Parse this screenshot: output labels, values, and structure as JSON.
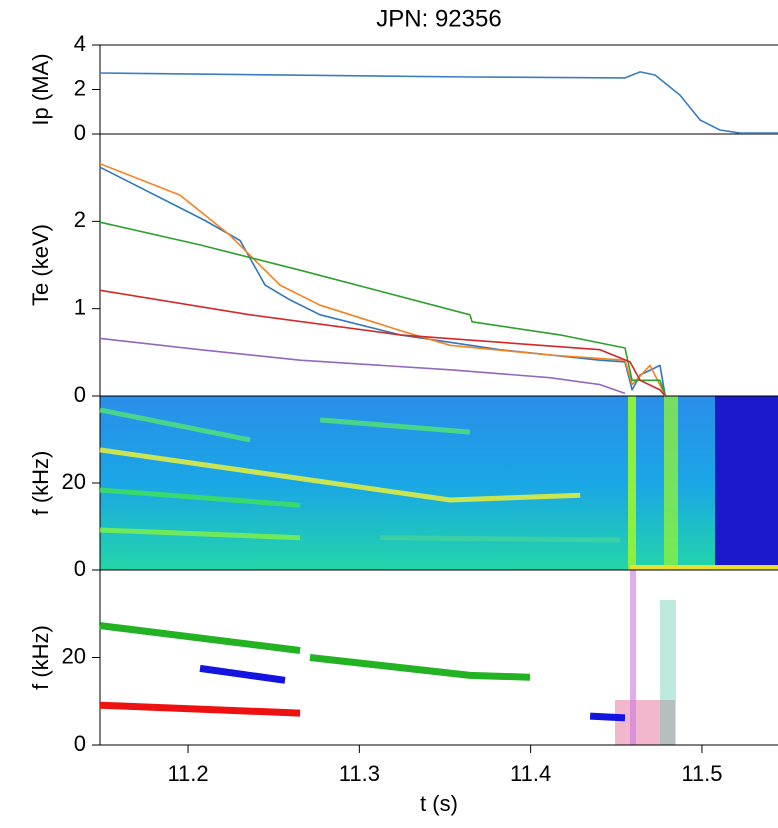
{
  "chart_data": [
    {
      "type": "line",
      "title": "JPN: 92356",
      "ylabel": "Ip (MA)",
      "xlim": [
        11.1486,
        11.5444
      ],
      "ylim": [
        0,
        4
      ],
      "yticks": [
        0,
        2,
        4
      ],
      "series": [
        {
          "color": "#3a7dbf",
          "x": [
            11.1486,
            11.3646,
            11.4551,
            11.4639,
            11.4726,
            11.4872,
            11.4989,
            11.5105,
            11.5222,
            11.5444
          ],
          "values": [
            2.74,
            2.56,
            2.52,
            2.79,
            2.65,
            1.75,
            0.63,
            0.18,
            0.04,
            0.04
          ]
        }
      ]
    },
    {
      "type": "line",
      "ylabel": "Te (keV)",
      "xlim": [
        11.1486,
        11.5444
      ],
      "ylim": [
        0,
        3
      ],
      "yticks": [
        0,
        1,
        2
      ],
      "series": [
        {
          "color": "#2f78c0",
          "x": [
            11.1486,
            11.2099,
            11.2304,
            11.245,
            11.2595,
            11.2771,
            11.3238,
            11.3821,
            11.4405,
            11.4551,
            11.4592,
            11.4639,
            11.4755,
            11.4785
          ],
          "values": [
            2.62,
            2.01,
            1.78,
            1.27,
            1.1,
            0.93,
            0.7,
            0.53,
            0.41,
            0.39,
            0.07,
            0.24,
            0.35,
            0.01
          ]
        },
        {
          "color": "#f5821f",
          "x": [
            11.1486,
            11.1953,
            11.2245,
            11.2537,
            11.2771,
            11.3238,
            11.353,
            11.4113,
            11.4551,
            11.4592,
            11.4697,
            11.4785
          ],
          "values": [
            2.66,
            2.3,
            1.84,
            1.27,
            1.04,
            0.75,
            0.58,
            0.47,
            0.41,
            0.13,
            0.35,
            0.01
          ]
        },
        {
          "color": "#2ca02c",
          "x": [
            11.1486,
            11.207,
            11.2654,
            11.3646,
            11.3658,
            11.4172,
            11.4551,
            11.4592,
            11.4755,
            11.4785
          ],
          "values": [
            1.99,
            1.73,
            1.44,
            0.93,
            0.85,
            0.7,
            0.55,
            0.18,
            0.18,
            0.01
          ]
        },
        {
          "color": "#d62728",
          "x": [
            11.1486,
            11.2362,
            11.3238,
            11.4405,
            11.458,
            11.4639,
            11.4755,
            11.4785
          ],
          "values": [
            1.21,
            0.93,
            0.7,
            0.53,
            0.39,
            0.18,
            0.07,
            0.0
          ]
        },
        {
          "color": "#9467bd",
          "x": [
            11.1486,
            11.207,
            11.2654,
            11.353,
            11.4113,
            11.4405,
            11.4551
          ],
          "values": [
            0.66,
            0.53,
            0.41,
            0.3,
            0.21,
            0.13,
            0.03
          ]
        }
      ]
    },
    {
      "type": "spectrogram",
      "ylabel": "f (kHz)",
      "xlim": [
        11.1486,
        11.5444
      ],
      "ylim": [
        0,
        40
      ],
      "yticks": [
        0,
        20
      ],
      "series": [
        {
          "color": "#e8f03a",
          "x": [
            11.1486,
            11.353,
            11.4289
          ],
          "values": [
            27.6,
            16.1,
            17.2
          ]
        },
        {
          "color": "#4fe07a",
          "x": [
            11.1486,
            11.2362
          ],
          "values": [
            36.8,
            29.9
          ]
        },
        {
          "color": "#4fe07a",
          "x": [
            11.2771,
            11.3646
          ],
          "values": [
            34.5,
            31.7
          ]
        },
        {
          "color": "#3ee05a",
          "x": [
            11.1486,
            11.2654
          ],
          "values": [
            18.4,
            14.9
          ]
        },
        {
          "color": "#7cf04a",
          "x": [
            11.1486,
            11.2654
          ],
          "values": [
            9.2,
            7.4
          ]
        },
        {
          "color": "#3fd2a0",
          "x": [
            11.3121,
            11.4522
          ],
          "values": [
            7.4,
            6.9
          ]
        }
      ]
    },
    {
      "type": "line",
      "ylabel": "f (kHz)",
      "xlabel": "t (s)",
      "xlim": [
        11.1486,
        11.5444
      ],
      "ylim": [
        0,
        40
      ],
      "yticks": [
        0,
        20
      ],
      "xticks": [
        11.2,
        11.3,
        11.4,
        11.5
      ],
      "line_width": 7,
      "series": [
        {
          "color": "#22b222",
          "x": [
            11.1486,
            11.2654
          ],
          "values": [
            27.3,
            21.6
          ]
        },
        {
          "color": "#22b222",
          "x": [
            11.2712,
            11.3646,
            11.3996
          ],
          "values": [
            20.0,
            15.9,
            15.5
          ]
        },
        {
          "color": "#1414e0",
          "x": [
            11.207,
            11.2566
          ],
          "values": [
            17.5,
            14.8
          ]
        },
        {
          "color": "#ee1111",
          "x": [
            11.1486,
            11.2654
          ],
          "values": [
            9.1,
            7.3
          ]
        },
        {
          "color": "#1414e0",
          "x": [
            11.4347,
            11.4551
          ],
          "values": [
            6.6,
            6.2
          ]
        }
      ]
    }
  ]
}
